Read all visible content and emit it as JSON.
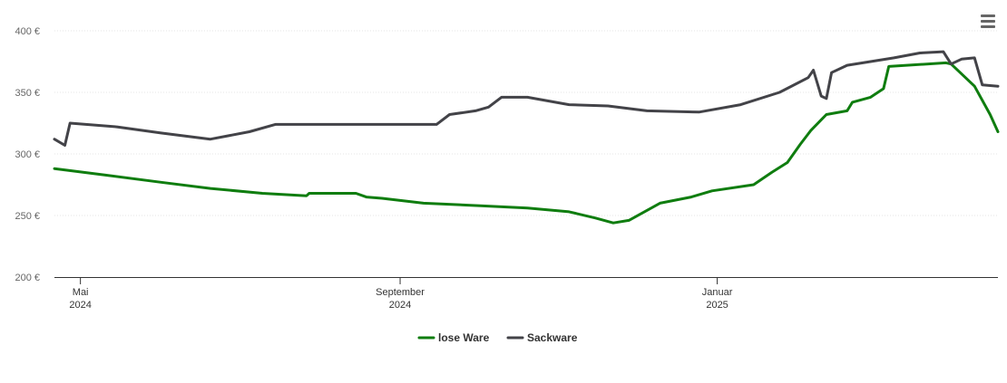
{
  "chart_data": {
    "type": "line",
    "title": "",
    "xlabel": "",
    "ylabel": "",
    "ylim": [
      200,
      400
    ],
    "y_ticks": [
      {
        "value": 400,
        "label": "400 €"
      },
      {
        "value": 350,
        "label": "350 €"
      },
      {
        "value": 300,
        "label": "300 €"
      },
      {
        "value": 250,
        "label": "250 €"
      },
      {
        "value": 200,
        "label": "200 €"
      }
    ],
    "xlim": [
      "2024-04-21",
      "2025-04-19"
    ],
    "x_ticks": [
      {
        "date": "2024-05-01",
        "month": "Mai",
        "year": "2024"
      },
      {
        "date": "2024-09-01",
        "month": "September",
        "year": "2024"
      },
      {
        "date": "2025-01-01",
        "month": "Januar",
        "year": "2025"
      }
    ],
    "grid": true,
    "legend_position": "bottom-center",
    "series": [
      {
        "name": "lose Ware",
        "color": "#0f7d0f",
        "points": [
          [
            "2024-04-21",
            288
          ],
          [
            "2024-05-10",
            283
          ],
          [
            "2024-06-01",
            277
          ],
          [
            "2024-06-20",
            272
          ],
          [
            "2024-07-10",
            268
          ],
          [
            "2024-07-27",
            266
          ],
          [
            "2024-07-28",
            268
          ],
          [
            "2024-08-15",
            268
          ],
          [
            "2024-08-19",
            265
          ],
          [
            "2024-08-25",
            264
          ],
          [
            "2024-09-10",
            260
          ],
          [
            "2024-10-01",
            258
          ],
          [
            "2024-10-20",
            256
          ],
          [
            "2024-11-05",
            253
          ],
          [
            "2024-11-15",
            248
          ],
          [
            "2024-11-22",
            244
          ],
          [
            "2024-11-28",
            246
          ],
          [
            "2024-12-10",
            260
          ],
          [
            "2024-12-22",
            265
          ],
          [
            "2024-12-30",
            270
          ],
          [
            "2025-01-15",
            275
          ],
          [
            "2025-01-22",
            285
          ],
          [
            "2025-01-28",
            293
          ],
          [
            "2025-02-02",
            308
          ],
          [
            "2025-02-06",
            319
          ],
          [
            "2025-02-12",
            332
          ],
          [
            "2025-02-20",
            335
          ],
          [
            "2025-02-22",
            342
          ],
          [
            "2025-03-01",
            346
          ],
          [
            "2025-03-06",
            353
          ],
          [
            "2025-03-08",
            371
          ],
          [
            "2025-03-30",
            374
          ],
          [
            "2025-04-01",
            373
          ],
          [
            "2025-04-10",
            355
          ],
          [
            "2025-04-16",
            332
          ],
          [
            "2025-04-19",
            318
          ]
        ]
      },
      {
        "name": "Sackware",
        "color": "#434348",
        "points": [
          [
            "2024-04-21",
            312
          ],
          [
            "2024-04-25",
            307
          ],
          [
            "2024-04-27",
            325
          ],
          [
            "2024-05-15",
            322
          ],
          [
            "2024-06-01",
            317
          ],
          [
            "2024-06-20",
            312
          ],
          [
            "2024-07-05",
            318
          ],
          [
            "2024-07-15",
            324
          ],
          [
            "2024-08-01",
            324
          ],
          [
            "2024-09-01",
            324
          ],
          [
            "2024-09-15",
            324
          ],
          [
            "2024-09-20",
            332
          ],
          [
            "2024-09-30",
            335
          ],
          [
            "2024-10-05",
            338
          ],
          [
            "2024-10-10",
            346
          ],
          [
            "2024-10-20",
            346
          ],
          [
            "2024-11-05",
            340
          ],
          [
            "2024-11-20",
            339
          ],
          [
            "2024-12-05",
            335
          ],
          [
            "2024-12-25",
            334
          ],
          [
            "2025-01-10",
            340
          ],
          [
            "2025-01-25",
            350
          ],
          [
            "2025-02-05",
            362
          ],
          [
            "2025-02-07",
            368
          ],
          [
            "2025-02-10",
            347
          ],
          [
            "2025-02-12",
            345
          ],
          [
            "2025-02-14",
            366
          ],
          [
            "2025-02-20",
            372
          ],
          [
            "2025-03-10",
            378
          ],
          [
            "2025-03-20",
            382
          ],
          [
            "2025-03-29",
            383
          ],
          [
            "2025-04-01",
            373
          ],
          [
            "2025-04-05",
            377
          ],
          [
            "2025-04-10",
            378
          ],
          [
            "2025-04-13",
            356
          ],
          [
            "2025-04-19",
            355
          ]
        ]
      }
    ]
  },
  "menu": {
    "icon": "hamburger-menu-icon"
  }
}
